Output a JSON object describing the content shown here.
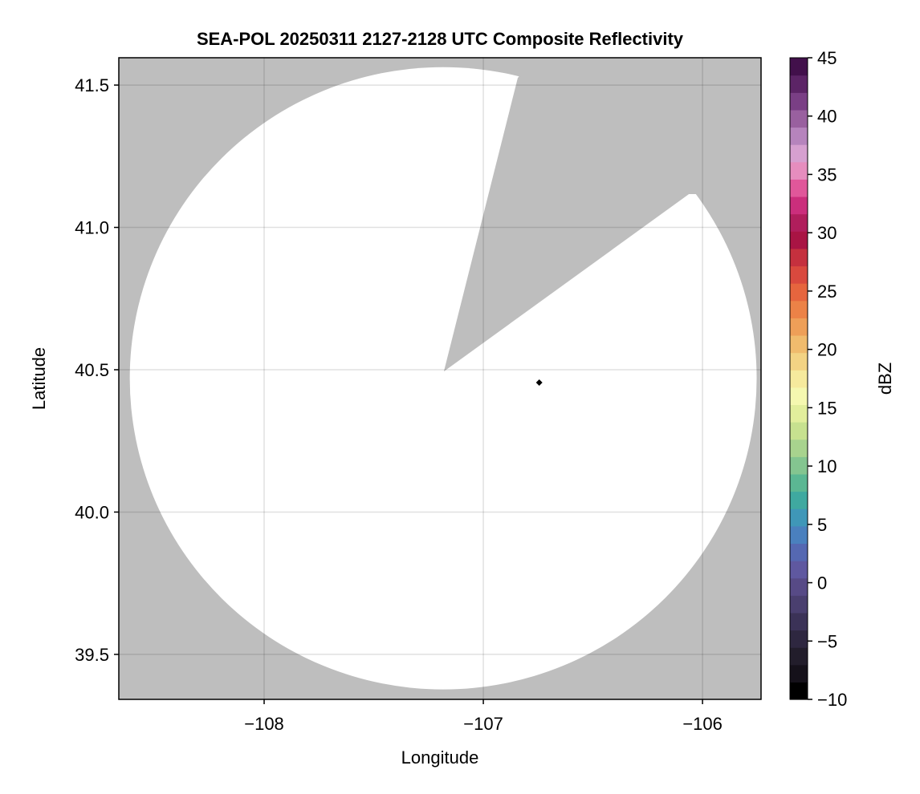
{
  "chart_data": {
    "type": "heatmap",
    "title": "SEA-POL 20250311 2127-2128 UTC Composite Reflectivity",
    "xlabel": "Longitude",
    "ylabel": "Latitude",
    "xlim": [
      -108.663,
      -105.733
    ],
    "ylim": [
      39.342,
      41.596
    ],
    "xticks": [
      -108,
      -107,
      -106
    ],
    "xtick_labels": [
      "−108",
      "−107",
      "−106"
    ],
    "yticks": [
      39.5,
      40.0,
      40.5,
      41.0,
      41.5
    ],
    "ytick_labels": [
      "39.5",
      "40.0",
      "40.5",
      "41.0",
      "41.5"
    ],
    "grid": true,
    "background_color": "#bebebe",
    "coverage_color": "#ffffff",
    "coverage": {
      "center": [
        -107.183,
        40.47
      ],
      "radius_deg": [
        1.43,
        1.093
      ],
      "blocked_sector": {
        "apex": [
          -107.18,
          40.494
        ],
        "edge1": [
          -106.843,
          41.525
        ],
        "edge2": [
          -106.062,
          41.117
        ]
      }
    },
    "marker": {
      "lon": -106.745,
      "lat": 40.455,
      "shape": "diamond",
      "color": "#000000"
    },
    "colorbar": {
      "label": "dBZ",
      "range": [
        -10,
        45
      ],
      "ticks": [
        -10,
        -5,
        0,
        5,
        10,
        15,
        20,
        25,
        30,
        35,
        40,
        45
      ],
      "tick_labels": [
        "−10",
        "−5",
        "0",
        "5",
        "10",
        "15",
        "20",
        "25",
        "30",
        "35",
        "40",
        "45"
      ],
      "colors": [
        "#000000",
        "#15111a",
        "#221d2b",
        "#2e2740",
        "#3b3257",
        "#4a3f6f",
        "#574a86",
        "#5f58a0",
        "#5568b2",
        "#4a80be",
        "#3f97b8",
        "#3fa9a0",
        "#5bb793",
        "#84c590",
        "#a8d38e",
        "#c7e18f",
        "#e2ee9c",
        "#f5f8b0",
        "#f6ea9d",
        "#f3d384",
        "#f0bb6d",
        "#ee9f58",
        "#ec8247",
        "#e6653e",
        "#d9493e",
        "#c5303e",
        "#a91444",
        "#b01e5c",
        "#cb2e7c",
        "#e0579a",
        "#e68dbe",
        "#d6a0d0",
        "#b684bd",
        "#99609f",
        "#7a3f85",
        "#5c2466",
        "#42104b"
      ]
    }
  }
}
